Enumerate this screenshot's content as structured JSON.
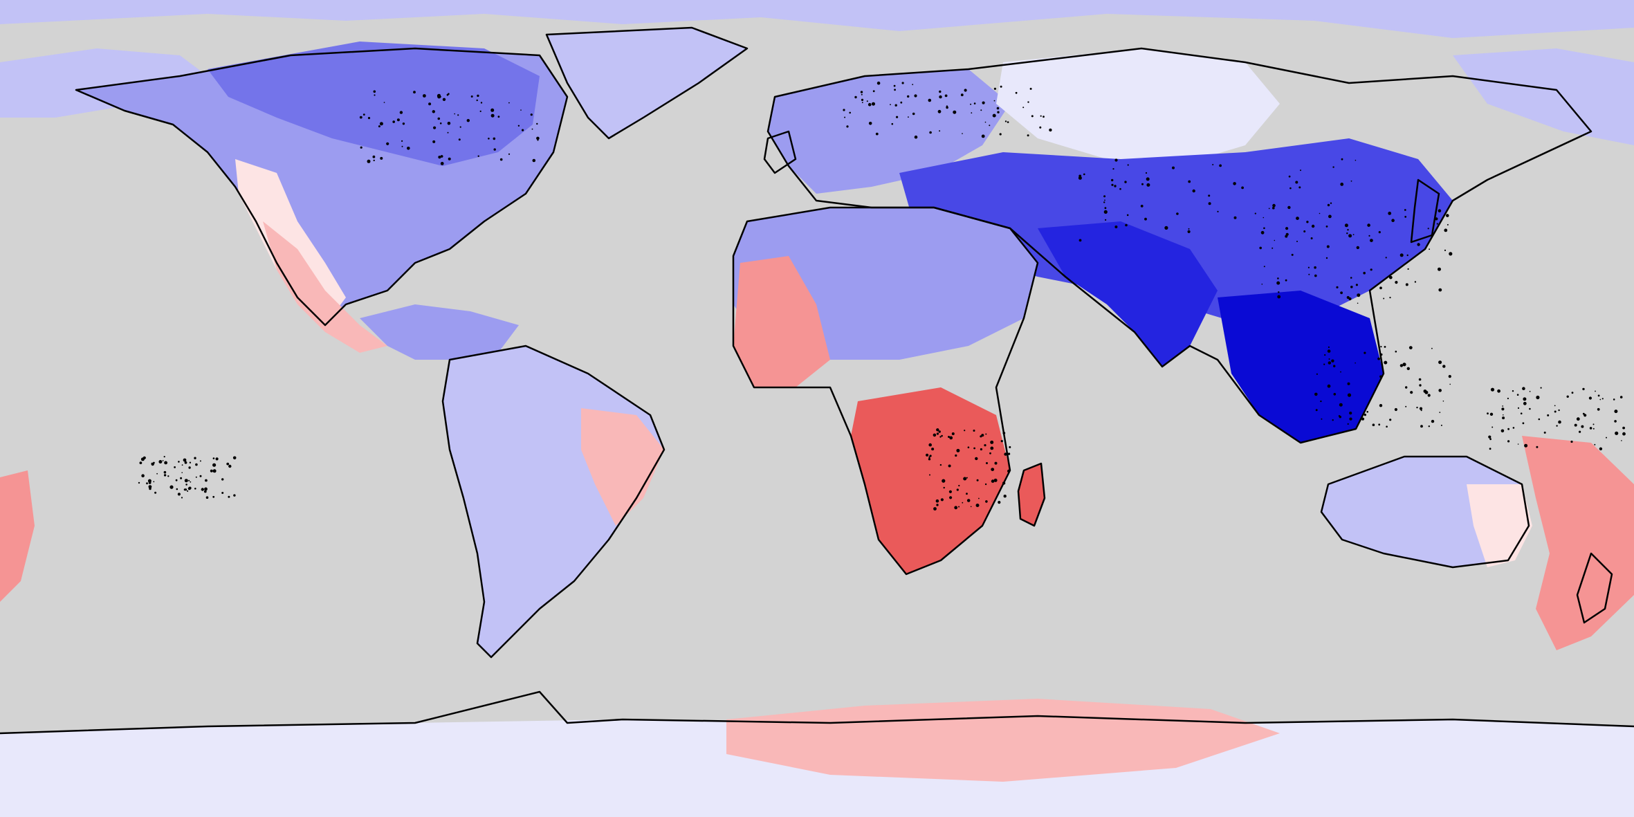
{
  "map": {
    "projection": "equirectangular",
    "colors": {
      "ocean_background": "#d3d3d3",
      "blue_1": "#e8e8fb",
      "blue_2": "#c2c2f6",
      "blue_3": "#9c9cf0",
      "blue_4": "#7474ea",
      "blue_5": "#4848e6",
      "blue_6": "#2424e0",
      "blue_7": "#0a0ad4",
      "red_1": "#fde4e4",
      "red_2": "#f9b8b8",
      "red_3": "#f59494",
      "red_4": "#f07474",
      "red_5": "#ea5a5a",
      "coastline": "#000000"
    },
    "regions": [
      {
        "name": "arctic",
        "tone": "blue_2"
      },
      {
        "name": "north-america",
        "tone": "blue_3"
      },
      {
        "name": "canada",
        "tone": "blue_4"
      },
      {
        "name": "greenland",
        "tone": "blue_2"
      },
      {
        "name": "western-us",
        "tone": "red_1"
      },
      {
        "name": "mexico",
        "tone": "red_2"
      },
      {
        "name": "central-america",
        "tone": "blue_3"
      },
      {
        "name": "south-america",
        "tone": "blue_2"
      },
      {
        "name": "eastern-brazil",
        "tone": "red_2"
      },
      {
        "name": "europe",
        "tone": "blue_3"
      },
      {
        "name": "siberia",
        "tone": "blue_1"
      },
      {
        "name": "asia",
        "tone": "blue_5"
      },
      {
        "name": "south-asia",
        "tone": "blue_6"
      },
      {
        "name": "southeast-asia",
        "tone": "blue_7"
      },
      {
        "name": "west-africa",
        "tone": "red_3"
      },
      {
        "name": "southern-africa",
        "tone": "red_5"
      },
      {
        "name": "madagascar",
        "tone": "red_5"
      },
      {
        "name": "australia",
        "tone": "blue_2"
      },
      {
        "name": "eastern-australia",
        "tone": "red_1"
      },
      {
        "name": "new-zealand",
        "tone": "red_3"
      },
      {
        "name": "antarctica",
        "tone": "blue_1"
      },
      {
        "name": "east-antarctica",
        "tone": "red_2"
      }
    ]
  }
}
